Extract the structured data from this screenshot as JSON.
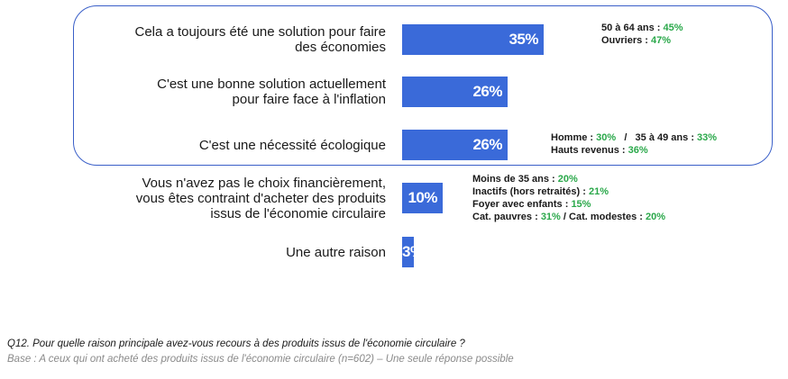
{
  "chart_data": {
    "type": "bar",
    "orientation": "horizontal",
    "unit": "%",
    "categories": [
      "Cela a toujours été une solution pour faire des économies",
      "C'est une bonne solution actuellement pour faire face à l'inflation",
      "C'est une nécessité écologique",
      "Vous n'avez pas le choix financièrement, vous êtes contraint d'acheter des produits issus de l'économie circulaire",
      "Une autre raison"
    ],
    "label_lines": [
      [
        "Cela a toujours été une solution pour faire",
        "des économies"
      ],
      [
        "C'est une bonne solution actuellement",
        "pour faire face à l'inflation"
      ],
      [
        "C'est une nécessité écologique"
      ],
      [
        "Vous n'avez pas le choix financièrement,",
        "vous êtes contraint d'acheter des produits",
        "issus de l'économie circulaire"
      ],
      [
        "Une autre raison"
      ]
    ],
    "values": [
      35,
      26,
      26,
      10,
      3
    ],
    "value_labels": [
      "35%",
      "26%",
      "26%",
      "10%",
      "3%"
    ],
    "bar_color": "#3a6ad9",
    "highlight_color": "#3a5fc8",
    "highlight_note_color": "#2aa84a",
    "annotations": [
      [
        [
          {
            "t": "50 à 64 ans : "
          },
          {
            "t": "45%",
            "g": true
          }
        ],
        [
          {
            "t": "Ouvriers : "
          },
          {
            "t": "47%",
            "g": true
          }
        ]
      ],
      [],
      [
        [
          {
            "t": "Homme : "
          },
          {
            "t": "30%",
            "g": true
          },
          {
            "t": "   /   35 à 49 ans : "
          },
          {
            "t": "33%",
            "g": true
          }
        ],
        [
          {
            "t": "Hauts revenus : "
          },
          {
            "t": "36%",
            "g": true
          }
        ]
      ],
      [
        [
          {
            "t": "Moins de 35 ans : "
          },
          {
            "t": "20%",
            "g": true
          }
        ],
        [
          {
            "t": "Inactifs (hors retraités) : "
          },
          {
            "t": "21%",
            "g": true
          }
        ],
        [
          {
            "t": "Foyer avec enfants : "
          },
          {
            "t": "15%",
            "g": true
          }
        ],
        [
          {
            "t": "Cat. pauvres : "
          },
          {
            "t": "31%",
            "g": true
          },
          {
            "t": " / Cat. modestes : "
          },
          {
            "t": "20%",
            "g": true
          }
        ]
      ],
      []
    ]
  },
  "footer": {
    "question": "Q12. Pour quelle raison principale avez-vous recours à des produits issus de l'économie circulaire ?",
    "base": "Base : A ceux qui ont acheté des produits issus de l'économie circulaire (n=602) – Une seule réponse possible"
  }
}
